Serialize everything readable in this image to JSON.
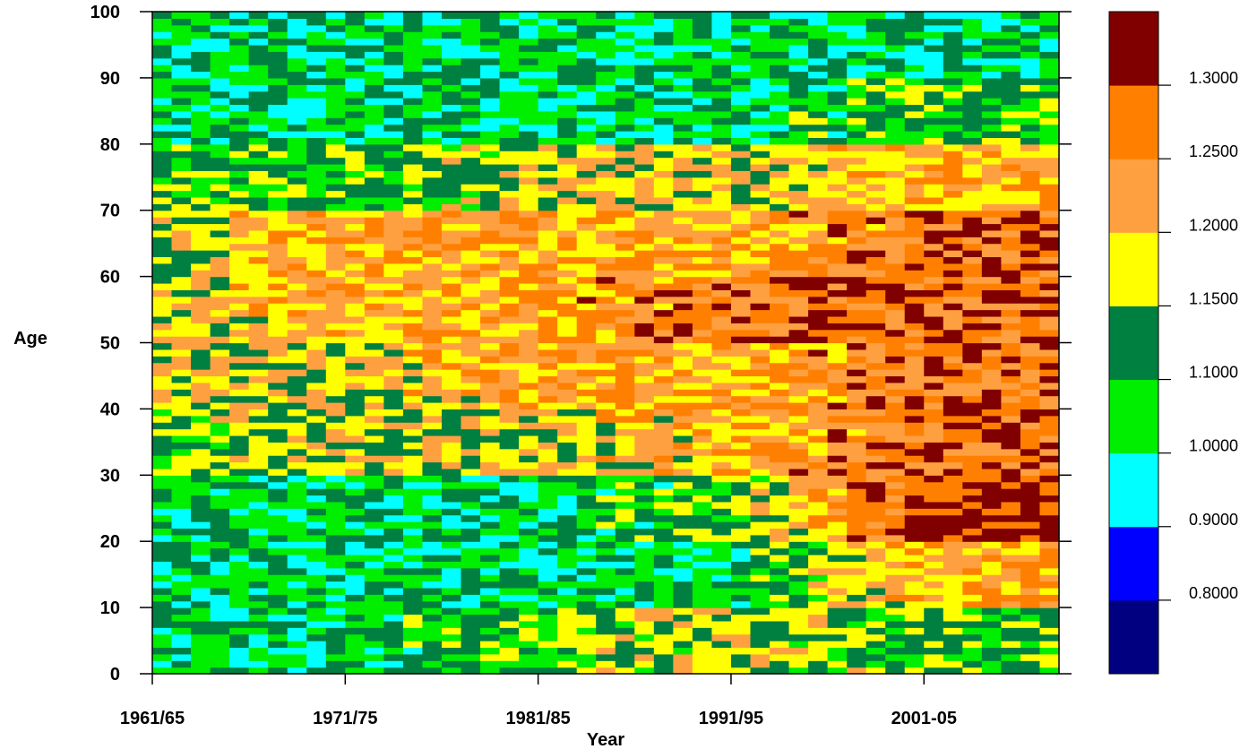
{
  "chart_data": {
    "type": "heatmap",
    "title": "",
    "xlabel": "Year",
    "ylabel": "Age",
    "x_ticks": [
      {
        "label": "1961/65",
        "year": 1961
      },
      {
        "label": "1971/75",
        "year": 1971
      },
      {
        "label": "1981/85",
        "year": 1981
      },
      {
        "label": "1991/95",
        "year": 1991
      },
      {
        "label": "2001-05",
        "year": 2001
      }
    ],
    "y_ticks": [
      0,
      10,
      20,
      30,
      40,
      50,
      60,
      70,
      80,
      90,
      100
    ],
    "xlim": [
      1961,
      2008
    ],
    "ylim": [
      0,
      100
    ],
    "grid": false,
    "legend": {
      "placement": "right",
      "bins": [
        {
          "color": "#000080",
          "label": ""
        },
        {
          "color": "#0000FF",
          "label": "0.8000"
        },
        {
          "color": "#00FFFF",
          "label": "0.9000"
        },
        {
          "color": "#00EE00",
          "label": "1.0000"
        },
        {
          "color": "#008040",
          "label": "1.1000"
        },
        {
          "color": "#FFFF00",
          "label": "1.1500"
        },
        {
          "color": "#FFA040",
          "label": "1.2000"
        },
        {
          "color": "#FF8000",
          "label": "1.2500"
        },
        {
          "color": "#800000",
          "label": "1.3000"
        }
      ]
    },
    "class_by_age_band": [
      {
        "age_from": 0,
        "age_to": 10,
        "class_by_decade": [
          3,
          3,
          4,
          5,
          4
        ]
      },
      {
        "age_from": 10,
        "age_to": 20,
        "class_by_decade": [
          3,
          3,
          3,
          3,
          6
        ]
      },
      {
        "age_from": 20,
        "age_to": 30,
        "class_by_decade": [
          3,
          3,
          3,
          4,
          8
        ]
      },
      {
        "age_from": 30,
        "age_to": 40,
        "class_by_decade": [
          4,
          5,
          5,
          6,
          7
        ]
      },
      {
        "age_from": 40,
        "age_to": 50,
        "class_by_decade": [
          5,
          5,
          6,
          6,
          7
        ]
      },
      {
        "age_from": 50,
        "age_to": 60,
        "class_by_decade": [
          5,
          6,
          6,
          7,
          7
        ]
      },
      {
        "age_from": 60,
        "age_to": 70,
        "class_by_decade": [
          5,
          6,
          6,
          6,
          7
        ]
      },
      {
        "age_from": 70,
        "age_to": 80,
        "class_by_decade": [
          4,
          4,
          5,
          5,
          6
        ]
      },
      {
        "age_from": 80,
        "age_to": 90,
        "class_by_decade": [
          3,
          3,
          3,
          3,
          4
        ]
      },
      {
        "age_from": 90,
        "age_to": 100,
        "class_by_decade": [
          3,
          3,
          3,
          3,
          3
        ]
      }
    ]
  }
}
